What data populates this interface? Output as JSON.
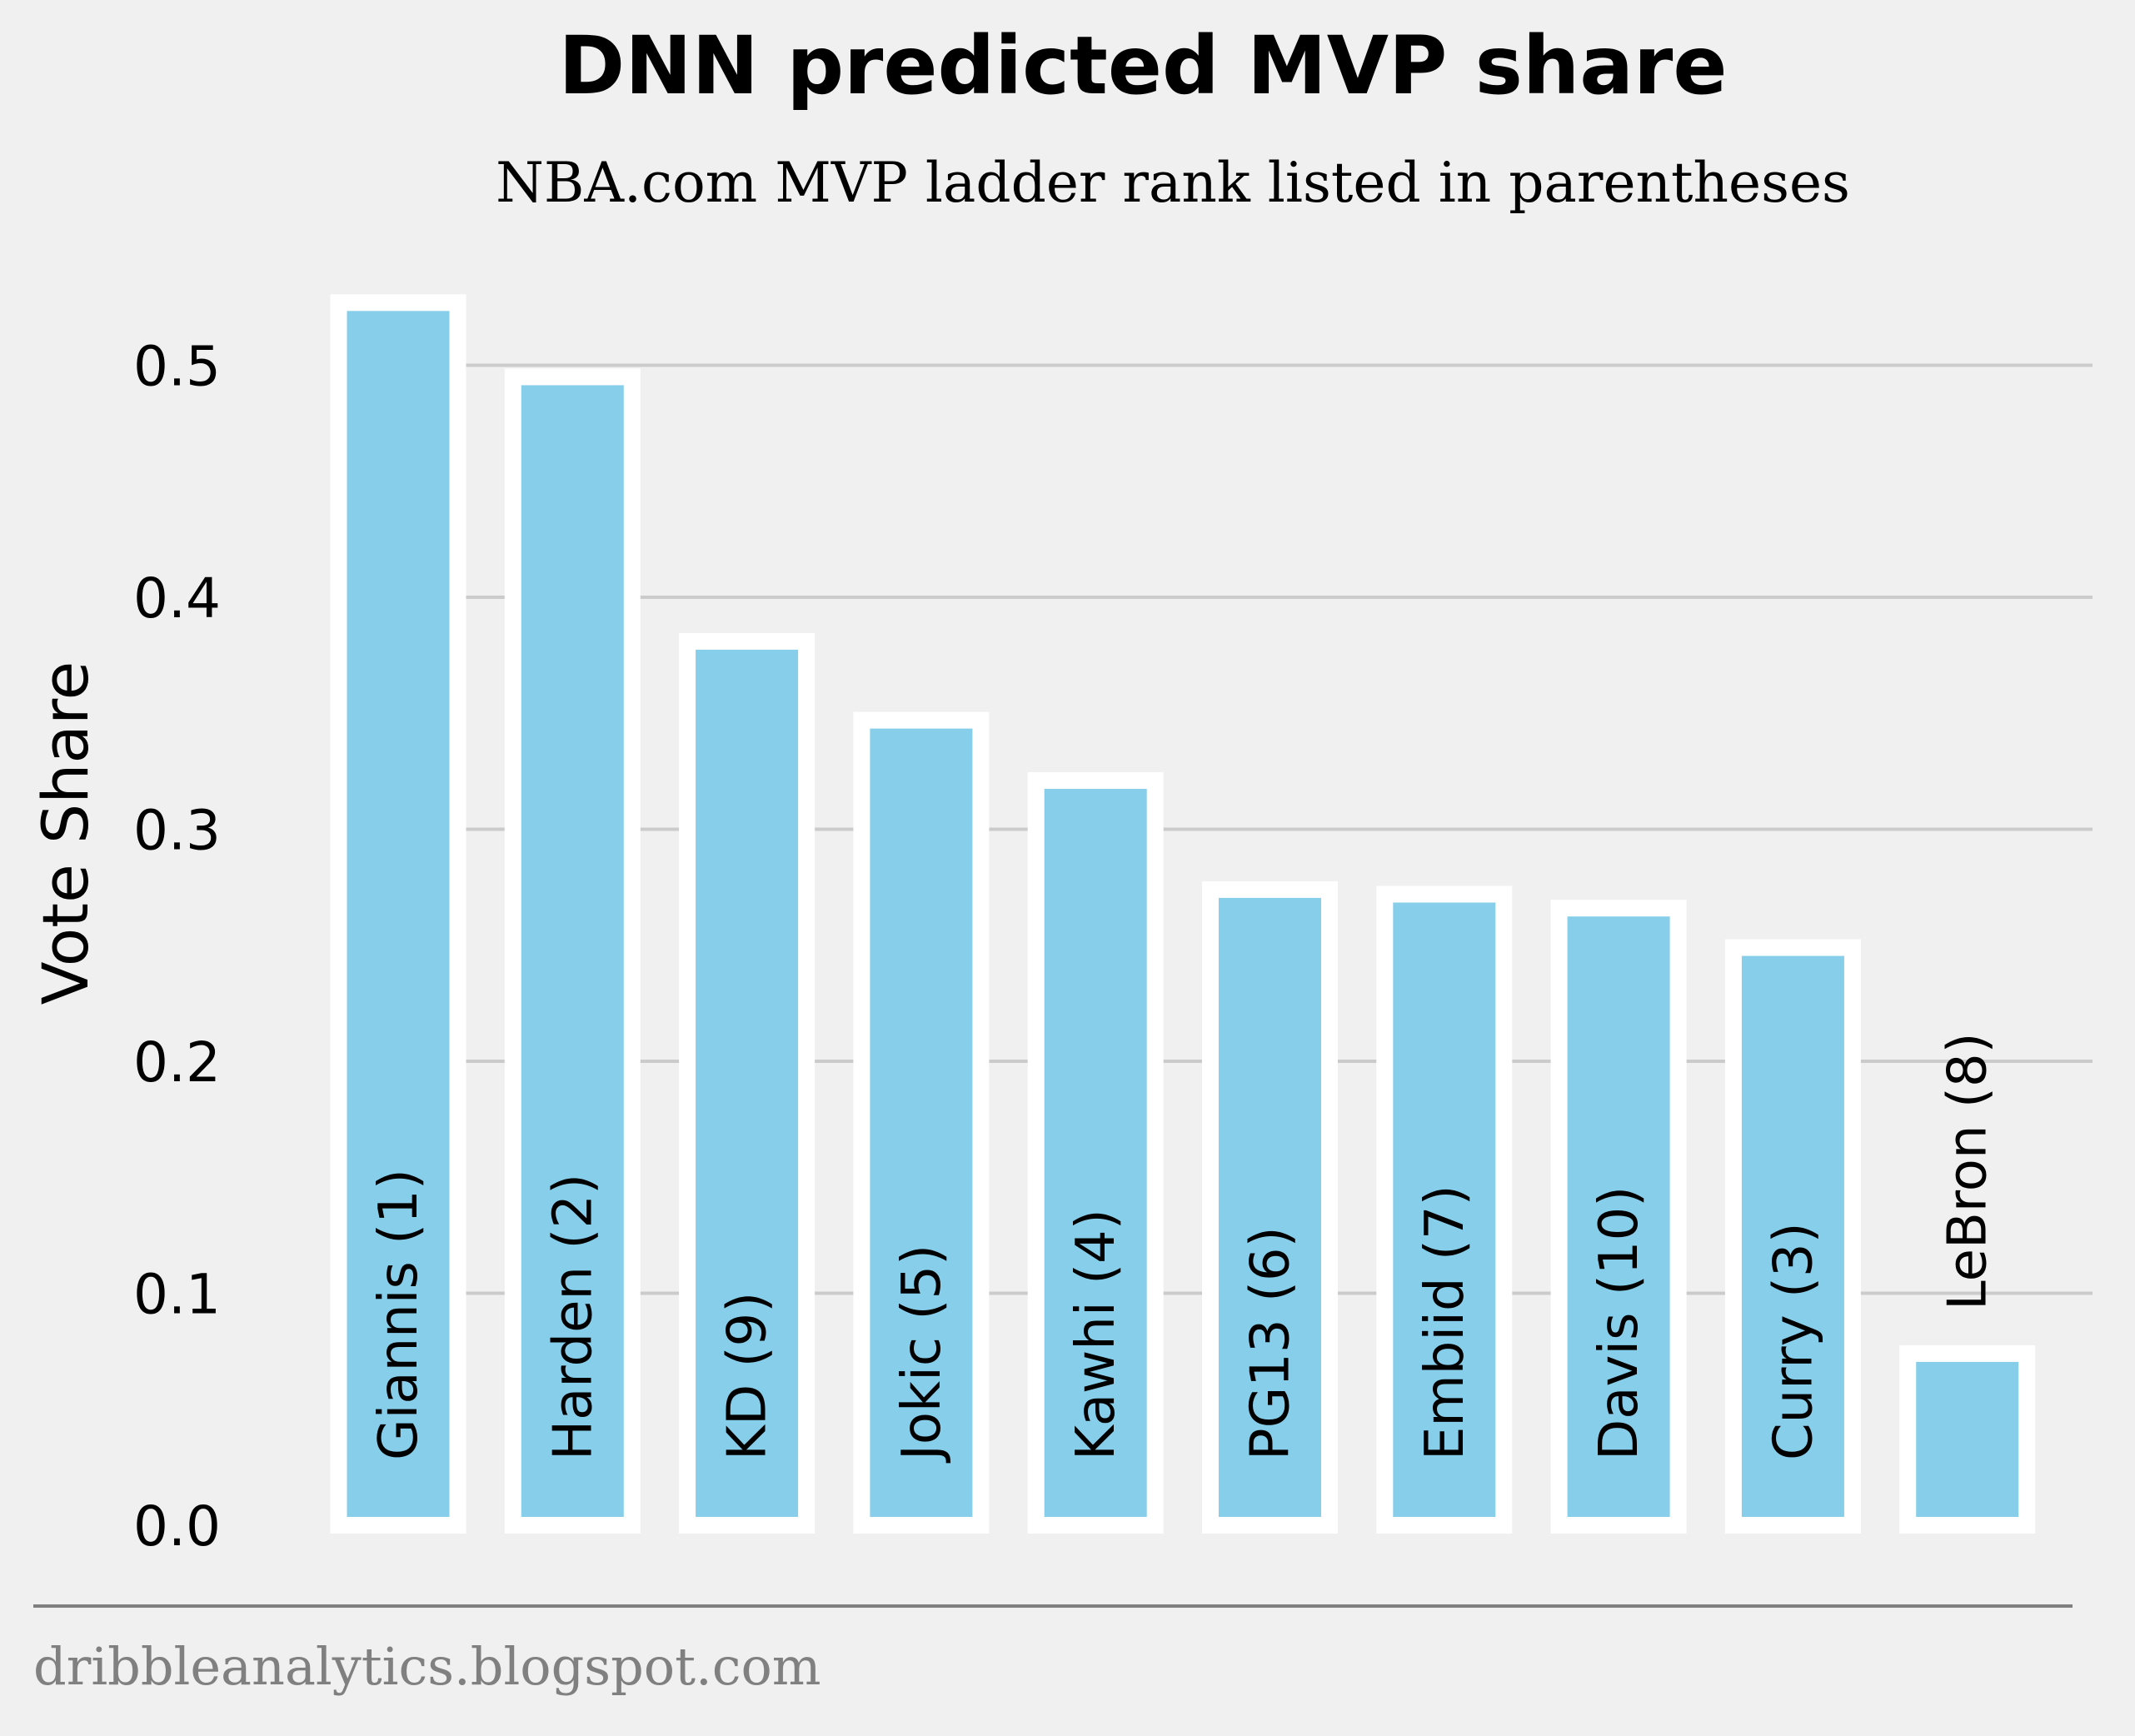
{
  "chart_data": {
    "type": "bar",
    "title": "DNN predicted MVP share",
    "subtitle": "NBA.com MVP ladder rank listed in parentheses",
    "ylabel": "Vote Share",
    "xlabel": "",
    "ylim": [
      0,
      0.53
    ],
    "yticks": [
      0.0,
      0.1,
      0.2,
      0.3,
      0.4,
      0.5
    ],
    "ytick_labels": [
      "0.0",
      "0.1",
      "0.2",
      "0.3",
      "0.4",
      "0.5"
    ],
    "grid": "horizontal",
    "categories": [
      "Giannis (1)",
      "Harden (2)",
      "KD (9)",
      "Jokic (5)",
      "Kawhi (4)",
      "PG13 (6)",
      "Embiid (7)",
      "Davis (10)",
      "Curry (3)",
      "LeBron (8)"
    ],
    "values": [
      0.527,
      0.495,
      0.381,
      0.347,
      0.321,
      0.274,
      0.272,
      0.266,
      0.249,
      0.074
    ],
    "bar_color": "#87ceeb",
    "bar_edge_color": "#ffffff",
    "background": "#f0f0f0"
  },
  "footer": {
    "source": "dribbleanalytics.blogspot.com"
  }
}
